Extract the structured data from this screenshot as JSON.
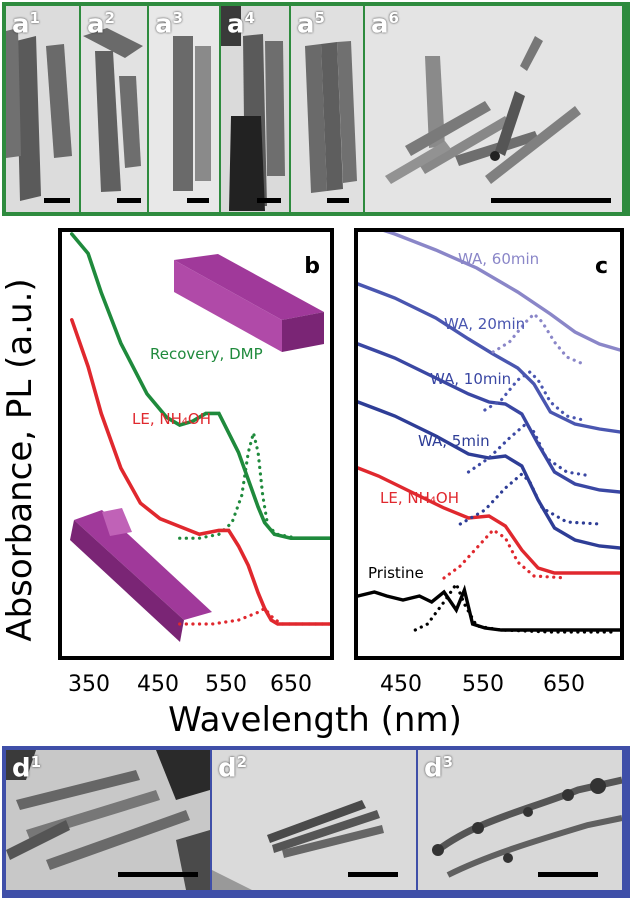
{
  "top_panels": [
    {
      "label": "a",
      "sup": "1"
    },
    {
      "label": "a",
      "sup": "2"
    },
    {
      "label": "a",
      "sup": "3"
    },
    {
      "label": "a",
      "sup": "4"
    },
    {
      "label": "a",
      "sup": "5"
    },
    {
      "label": "a",
      "sup": "6"
    }
  ],
  "bottom_panels": [
    {
      "label": "d",
      "sup": "1"
    },
    {
      "label": "d",
      "sup": "2"
    },
    {
      "label": "d",
      "sup": "3"
    }
  ],
  "colors": {
    "green": "#1f8a3c",
    "red": "#e0282e",
    "blue_dark": "#2e3d96",
    "blue_mid": "#4a56b0",
    "blue_light": "#8a86c8",
    "black": "#000000",
    "frame_a": "#2e8b3e",
    "frame_d": "#3f4fa8"
  },
  "figure": {
    "ylabel": "Absorbance, PL (a.u.)",
    "xlabel": "Wavelength (nm)"
  },
  "chart_data": [
    {
      "panel": "b",
      "type": "line",
      "xticks": [
        "350",
        "450",
        "550",
        "650"
      ],
      "xlim": [
        290,
        700
      ],
      "series": [
        {
          "name": "Recovery, DMP",
          "color": "#1f8a3c",
          "style": "solid",
          "x": [
            305,
            330,
            350,
            380,
            420,
            450,
            470,
            490,
            510,
            530,
            545,
            560,
            575,
            590,
            600,
            615,
            640,
            700
          ],
          "y": [
            1.0,
            0.95,
            0.85,
            0.72,
            0.59,
            0.53,
            0.51,
            0.52,
            0.54,
            0.54,
            0.49,
            0.44,
            0.37,
            0.3,
            0.26,
            0.23,
            0.22,
            0.22
          ]
        },
        {
          "name": "Recovery, DMP PL",
          "color": "#1f8a3c",
          "style": "dotted",
          "x": [
            470,
            500,
            530,
            550,
            565,
            575,
            583,
            590,
            597,
            605,
            620,
            650,
            700
          ],
          "y": [
            0.22,
            0.22,
            0.23,
            0.26,
            0.33,
            0.44,
            0.49,
            0.44,
            0.33,
            0.25,
            0.23,
            0.22,
            0.22
          ]
        },
        {
          "name": "LE, NH4OH",
          "color": "#e0282e",
          "style": "solid",
          "x": [
            305,
            330,
            350,
            380,
            410,
            440,
            470,
            500,
            530,
            545,
            560,
            575,
            590,
            600,
            610,
            620,
            640,
            700
          ],
          "y": [
            0.78,
            0.66,
            0.54,
            0.4,
            0.31,
            0.27,
            0.25,
            0.23,
            0.24,
            0.24,
            0.2,
            0.15,
            0.08,
            0.04,
            0.01,
            0.0,
            0.0,
            0.0
          ]
        },
        {
          "name": "LE, NH4OH PL",
          "color": "#e0282e",
          "style": "dotted",
          "x": [
            470,
            520,
            560,
            575,
            590,
            600,
            610,
            625,
            650,
            700
          ],
          "y": [
            0.0,
            0.0,
            0.01,
            0.02,
            0.03,
            0.04,
            0.02,
            0.0,
            0.0,
            0.0
          ]
        }
      ],
      "annotations": [
        "Recovery, DMP",
        "LE, NH₄OH"
      ],
      "letter": "b"
    },
    {
      "panel": "c",
      "type": "line",
      "xticks": [
        "450",
        "550",
        "650"
      ],
      "xlim": [
        385,
        705
      ],
      "series": [
        {
          "name": "WA, 60min",
          "color": "#8a86c8",
          "style": "solid"
        },
        {
          "name": "WA, 20min",
          "color": "#4a56b0",
          "style": "solid"
        },
        {
          "name": "WA, 10min",
          "color": "#3a47a3",
          "style": "solid"
        },
        {
          "name": "WA, 5min",
          "color": "#2e3d96",
          "style": "solid"
        },
        {
          "name": "LE, NH4OH",
          "color": "#e0282e",
          "style": "solid"
        },
        {
          "name": "Pristine",
          "color": "#000000",
          "style": "solid"
        }
      ],
      "annotations": [
        "WA, 60min",
        "WA, 20min",
        "WA, 10min",
        "WA, 5min",
        "LE, NH₄OH",
        "Pristine"
      ],
      "letter": "c"
    }
  ]
}
